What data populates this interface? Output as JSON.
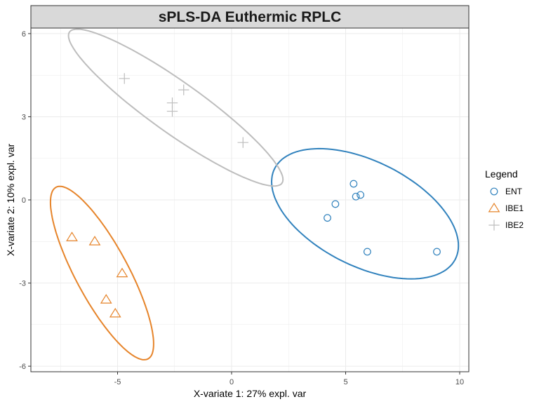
{
  "chart_data": {
    "type": "scatter",
    "title": "sPLS-DA Euthermic RPLC",
    "xlabel": "X-variate 1: 27% expl. var",
    "ylabel": "X-variate 2: 10% expl. var",
    "xlim": [
      -8.8,
      10.4
    ],
    "ylim": [
      -6.2,
      6.2
    ],
    "x_ticks": [
      -5,
      0,
      5,
      10
    ],
    "x_tick_labels": [
      "-5",
      "0",
      "5",
      "10"
    ],
    "y_ticks": [
      -6,
      -3,
      0,
      3,
      6
    ],
    "y_tick_labels": [
      "-6",
      "-3",
      "0",
      "3",
      "6"
    ],
    "grid": true,
    "legend": {
      "title": "Legend",
      "position": "right"
    },
    "series": [
      {
        "name": "ENT",
        "marker": "circle",
        "color": "#3182bd",
        "points": [
          {
            "x": 4.2,
            "y": -0.65
          },
          {
            "x": 4.55,
            "y": -0.15
          },
          {
            "x": 5.35,
            "y": 0.58
          },
          {
            "x": 5.45,
            "y": 0.12
          },
          {
            "x": 5.65,
            "y": 0.18
          },
          {
            "x": 5.95,
            "y": -1.87
          },
          {
            "x": 9.0,
            "y": -1.87
          }
        ],
        "ellipse": {
          "cx": 5.85,
          "cy": -0.5,
          "semi_major": 4.3,
          "semi_minor": 1.95,
          "angle_deg": -20
        }
      },
      {
        "name": "IBE1",
        "marker": "triangle",
        "color": "#e6842a",
        "points": [
          {
            "x": -7.0,
            "y": -1.35
          },
          {
            "x": -6.0,
            "y": -1.5
          },
          {
            "x": -4.8,
            "y": -2.65
          },
          {
            "x": -5.5,
            "y": -3.6
          },
          {
            "x": -5.1,
            "y": -4.1
          }
        ],
        "ellipse": {
          "cx": -5.68,
          "cy": -2.64,
          "semi_major": 3.7,
          "semi_minor": 1.1,
          "angle_deg": -56
        }
      },
      {
        "name": "IBE2",
        "marker": "plus",
        "color": "#bdbdbd",
        "points": [
          {
            "x": -4.7,
            "y": 4.38
          },
          {
            "x": -2.6,
            "y": 3.5
          },
          {
            "x": -2.6,
            "y": 3.2
          },
          {
            "x": -2.1,
            "y": 3.97
          },
          {
            "x": 0.5,
            "y": 2.07
          }
        ],
        "ellipse": {
          "cx": -2.45,
          "cy": 3.33,
          "semi_major": 5.4,
          "semi_minor": 0.98,
          "angle_deg": -30
        }
      }
    ]
  },
  "style": {
    "panel_background": "#ffffff",
    "grid_color": "#ebebeb",
    "strip_background": "#d9d9d9",
    "frame_color": "#333333"
  }
}
